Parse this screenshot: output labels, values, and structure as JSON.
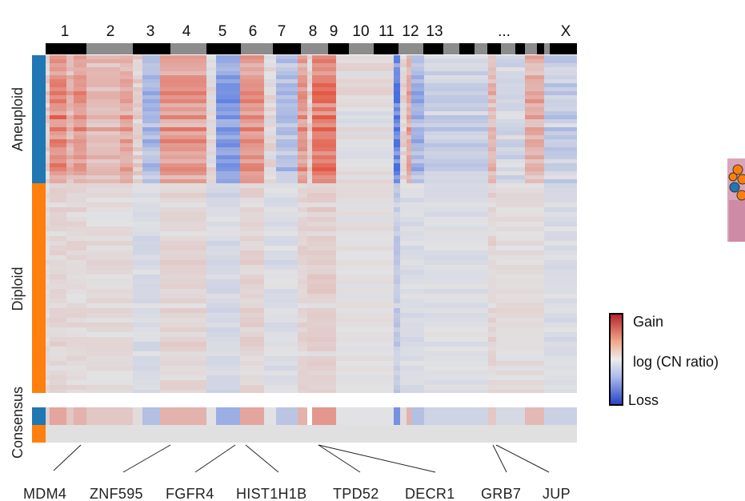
{
  "chromosomes": [
    "1",
    "2",
    "3",
    "4",
    "5",
    "6",
    "7",
    "8",
    "9",
    "10",
    "11",
    "12",
    "13",
    "...",
    "X"
  ],
  "groups": {
    "aneuploid": "Aneuploid",
    "diploid": "Diploid",
    "consensus": "Consensus"
  },
  "genes": [
    "MDM4",
    "ZNF595",
    "FGFR4",
    "HIST1H1B",
    "TPD52",
    "DECR1",
    "GRB7",
    "JUP"
  ],
  "legend": {
    "gain": "Gain",
    "title": "log (CN ratio)",
    "loss": "Loss"
  },
  "colors": {
    "aneuploid": "#1f77b4",
    "diploid": "#ff7f0e",
    "gain": "#c0392b",
    "neutral": "#e2e2e2",
    "loss": "#2f48c8",
    "chrom_dark": "#000000",
    "chrom_light": "#8c8c8c"
  }
}
